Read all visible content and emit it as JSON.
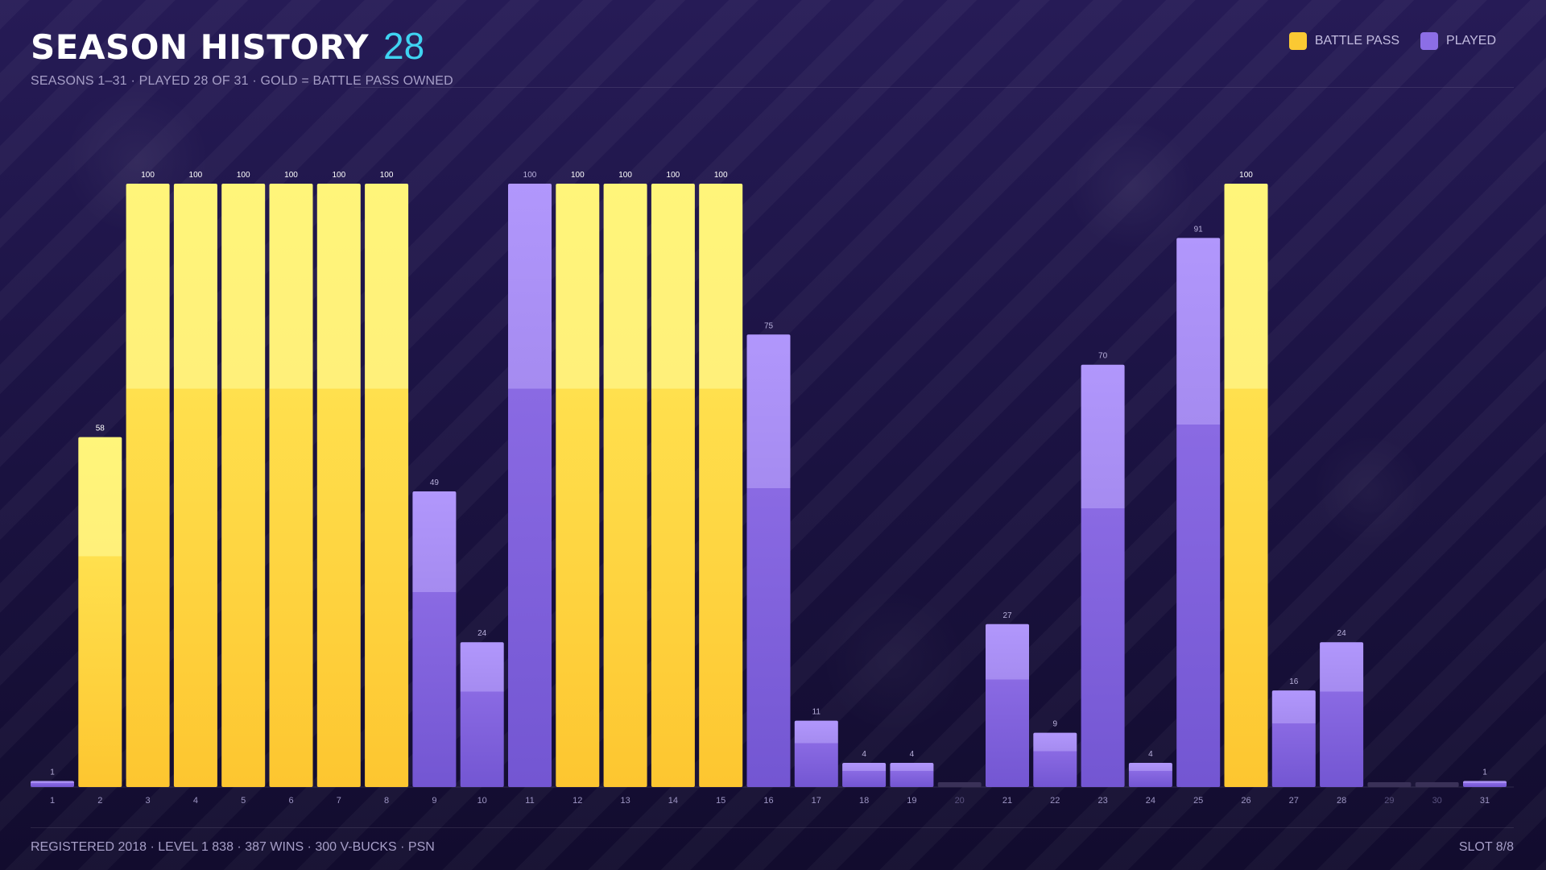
{
  "header": {
    "title": "SEASON HISTORY",
    "count": "28",
    "subtitle": "SEASONS 1–31 · PLAYED 28 OF 31 · GOLD = BATTLE PASS OWNED"
  },
  "legend": {
    "battle_pass": "BATTLE PASS",
    "played": "PLAYED"
  },
  "colors": {
    "gold_top": "#fff57a",
    "gold_bottom": "#fdc630",
    "purple_top": "#b197fc",
    "purple_bottom": "#7356d2",
    "empty": "#3a3158",
    "accent": "#3fd4f2"
  },
  "footer": {
    "left": "REGISTERED 2018 · LEVEL 1 838 · 387 WINS · 300 V-BUCKS · PSN",
    "right": "SLOT 8/8"
  },
  "chart_data": {
    "type": "bar",
    "ylim": [
      0,
      100
    ],
    "categories": [
      "1",
      "2",
      "3",
      "4",
      "5",
      "6",
      "7",
      "8",
      "9",
      "10",
      "11",
      "12",
      "13",
      "14",
      "15",
      "16",
      "17",
      "18",
      "19",
      "20",
      "21",
      "22",
      "23",
      "24",
      "25",
      "26",
      "27",
      "28",
      "29",
      "30",
      "31"
    ],
    "values": [
      1,
      58,
      100,
      100,
      100,
      100,
      100,
      100,
      49,
      24,
      100,
      100,
      100,
      100,
      100,
      75,
      11,
      4,
      4,
      0,
      27,
      9,
      70,
      4,
      91,
      100,
      16,
      24,
      0,
      0,
      1
    ],
    "battle_pass": [
      false,
      true,
      true,
      true,
      true,
      true,
      true,
      true,
      false,
      false,
      false,
      true,
      true,
      true,
      true,
      false,
      false,
      false,
      false,
      false,
      false,
      false,
      false,
      false,
      false,
      true,
      false,
      false,
      false,
      false,
      false
    ],
    "played": [
      true,
      true,
      true,
      true,
      true,
      true,
      true,
      true,
      true,
      true,
      true,
      true,
      true,
      true,
      true,
      true,
      true,
      true,
      true,
      false,
      true,
      true,
      true,
      true,
      true,
      true,
      true,
      true,
      false,
      false,
      true
    ],
    "legend_position": "top-right",
    "grid": false
  }
}
